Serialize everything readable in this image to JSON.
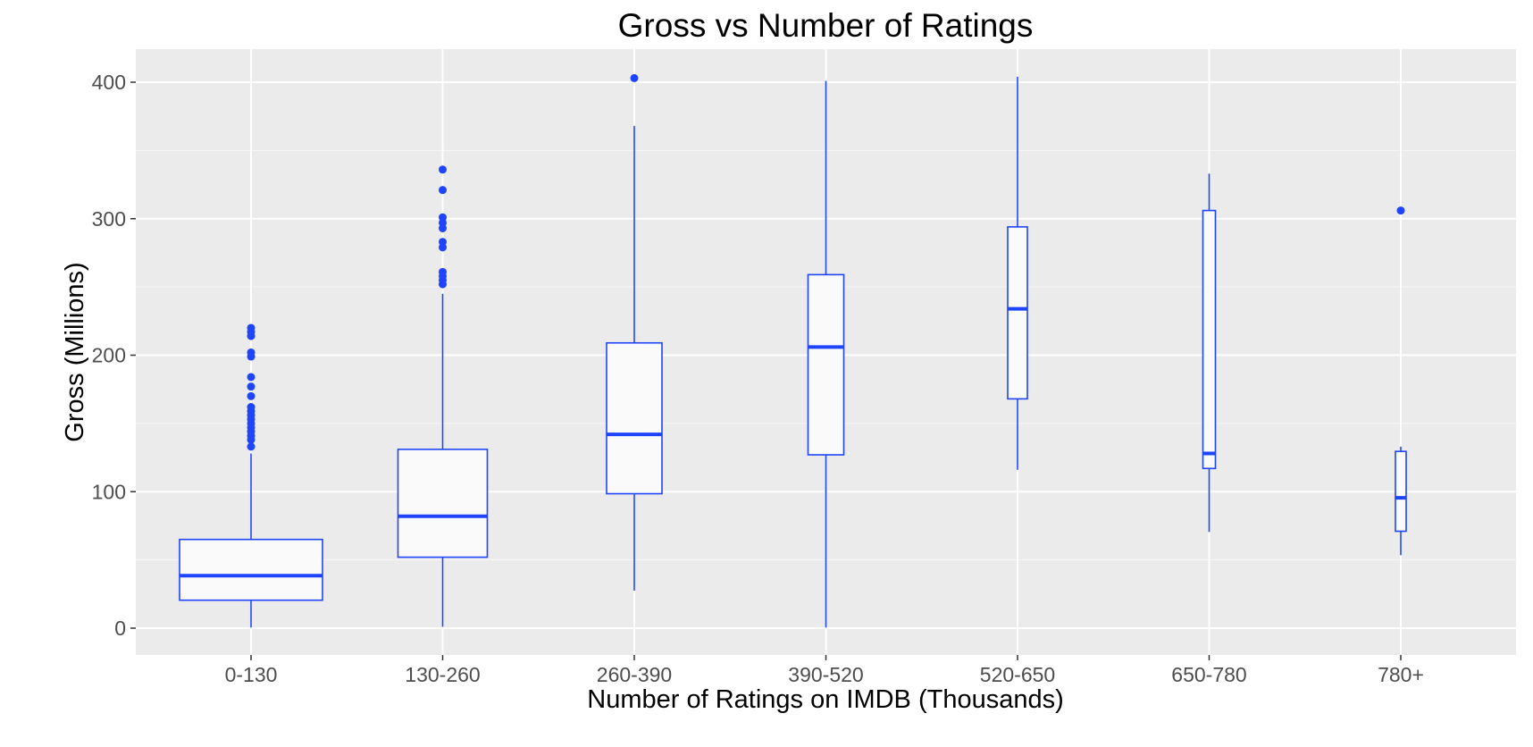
{
  "chart_data": {
    "type": "box",
    "title": "Gross vs Number of Ratings",
    "xlabel": "Number of Ratings on IMDB (Thousands)",
    "ylabel": "Gross (Millions)",
    "categories": [
      "0-130",
      "130-260",
      "260-390",
      "390-520",
      "520-650",
      "650-780",
      "780+"
    ],
    "y_ticks": [
      "0",
      "100",
      "200",
      "300",
      "400"
    ],
    "ylim": [
      -20,
      425
    ],
    "grid": true,
    "legend": "none",
    "colors": {
      "panel": "#ebebeb",
      "grid": "#ffffff",
      "box_stroke": "#1f45fc",
      "box_fill": "#fafafa",
      "outlier": "#1f45fc",
      "axis_text": "#4d4d4d"
    },
    "boxes": [
      {
        "category": "0-130",
        "whisker_low": 0.5,
        "q1": 20.5,
        "median": 38.5,
        "q3": 65,
        "whisker_high": 128,
        "outliers": [
          133,
          138,
          141,
          144,
          147,
          150,
          153,
          156,
          159,
          162,
          170,
          177,
          184,
          199,
          202,
          214,
          217,
          220
        ]
      },
      {
        "category": "130-260",
        "whisker_low": 1,
        "q1": 52,
        "median": 82,
        "q3": 131,
        "whisker_high": 245,
        "outliers": [
          252,
          255,
          258,
          261,
          279,
          283,
          293,
          297,
          301,
          321,
          336
        ]
      },
      {
        "category": "260-390",
        "whisker_low": 27.5,
        "q1": 98.5,
        "median": 142,
        "q3": 209,
        "whisker_high": 368,
        "outliers": [
          403
        ]
      },
      {
        "category": "390-520",
        "whisker_low": 0.5,
        "q1": 127,
        "median": 206,
        "q3": 259,
        "whisker_high": 401,
        "outliers": []
      },
      {
        "category": "520-650",
        "whisker_low": 116,
        "q1": 168,
        "median": 234,
        "q3": 294,
        "whisker_high": 404,
        "outliers": []
      },
      {
        "category": "650-780",
        "whisker_low": 70.5,
        "q1": 117,
        "median": 128,
        "q3": 306,
        "whisker_high": 333,
        "outliers": []
      },
      {
        "category": "780+",
        "whisker_low": 53.5,
        "q1": 71,
        "median": 95.5,
        "q3": 129.5,
        "whisker_high": 133,
        "outliers": [
          306
        ]
      }
    ]
  }
}
